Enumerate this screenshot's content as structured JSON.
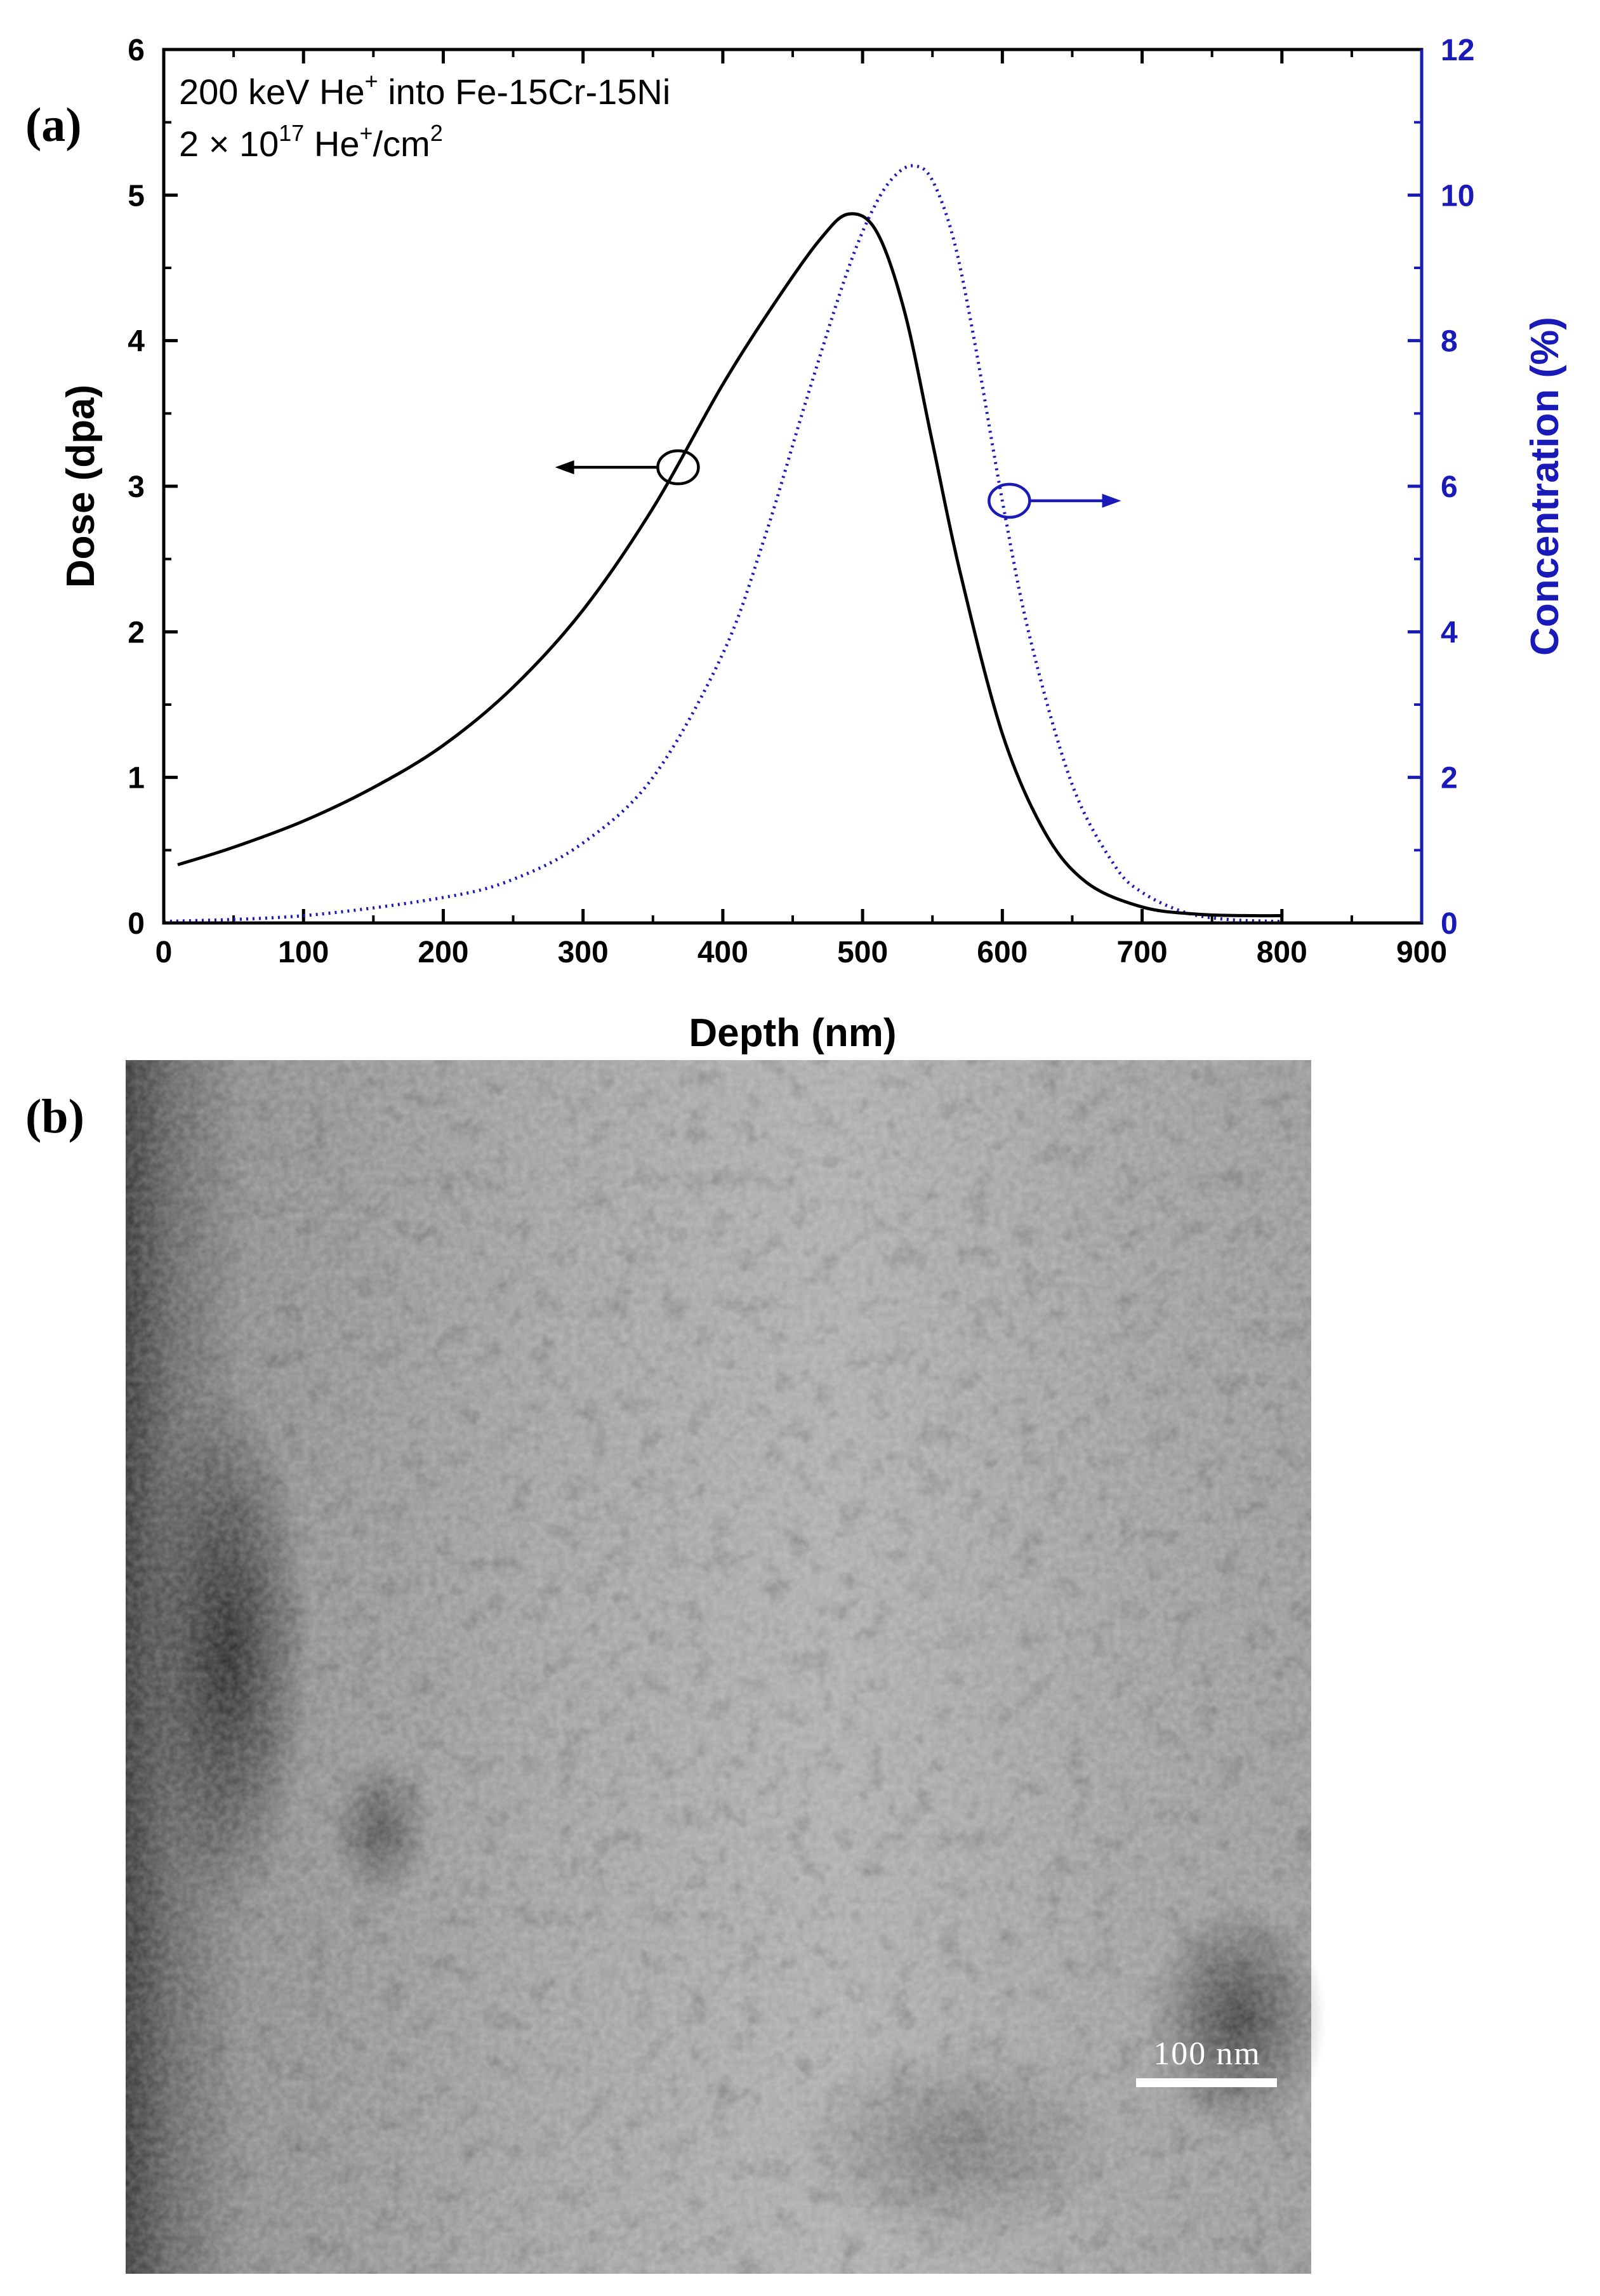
{
  "panels": {
    "a_label": "(a)",
    "b_label": "(b)"
  },
  "annotation": {
    "line1_prefix": "200 keV He",
    "line1_sup": "+",
    "line1_suffix": " into Fe-15Cr-15Ni",
    "line2_prefix": "2 × 10",
    "line2_sup1": "17",
    "line2_mid": " He",
    "line2_sup2": "+",
    "line2_mid2": "/cm",
    "line2_sup3": "2"
  },
  "colors": {
    "dose": "#000000",
    "concentration": "#1a1ab8",
    "right_axis": "#1a1ab8"
  },
  "chart_data": {
    "type": "line",
    "xlabel": "Depth (nm)",
    "ylabel": "Dose (dpa)",
    "y2label": "Concentration (%)",
    "xlim": [
      0,
      900
    ],
    "ylim": [
      0,
      6
    ],
    "y2lim": [
      0,
      12
    ],
    "xticks": [
      "0",
      "100",
      "200",
      "300",
      "400",
      "500",
      "600",
      "700",
      "800",
      "900"
    ],
    "yticks": [
      "0",
      "1",
      "2",
      "3",
      "4",
      "5",
      "6"
    ],
    "y2ticks": [
      "0",
      "2",
      "4",
      "6",
      "8",
      "10",
      "12"
    ],
    "series": [
      {
        "key": "dose",
        "axis": "left",
        "style": "solid",
        "x": [
          10,
          50,
          100,
          150,
          200,
          250,
          300,
          350,
          400,
          440,
          470,
          490,
          510,
          530,
          550,
          570,
          600,
          630,
          660,
          700,
          740,
          780,
          800
        ],
        "y": [
          0.4,
          0.52,
          0.7,
          0.93,
          1.22,
          1.62,
          2.15,
          2.85,
          3.7,
          4.3,
          4.7,
          4.87,
          4.75,
          4.2,
          3.3,
          2.4,
          1.3,
          0.63,
          0.28,
          0.11,
          0.06,
          0.05,
          0.05
        ]
      },
      {
        "key": "concentration",
        "axis": "right",
        "style": "dotted",
        "x": [
          0,
          100,
          200,
          250,
          300,
          350,
          400,
          430,
          460,
          490,
          510,
          525,
          538,
          550,
          565,
          580,
          600,
          620,
          650,
          680,
          700,
          730,
          760,
          800
        ],
        "y": [
          0.02,
          0.1,
          0.35,
          0.6,
          1.1,
          2.0,
          3.7,
          5.3,
          7.2,
          9.0,
          9.9,
          10.3,
          10.4,
          10.2,
          9.4,
          8.0,
          5.8,
          3.9,
          1.9,
          0.8,
          0.42,
          0.15,
          0.05,
          0.02
        ]
      }
    ],
    "markers": [
      {
        "axis": "left",
        "x": 368,
        "y": 3.13,
        "arrow_to_x": 280
      },
      {
        "axis": "right",
        "x": 605,
        "y": 5.8,
        "arrow_to_x": 685
      }
    ]
  },
  "micrograph": {
    "scale_bar_label": "100 nm"
  }
}
